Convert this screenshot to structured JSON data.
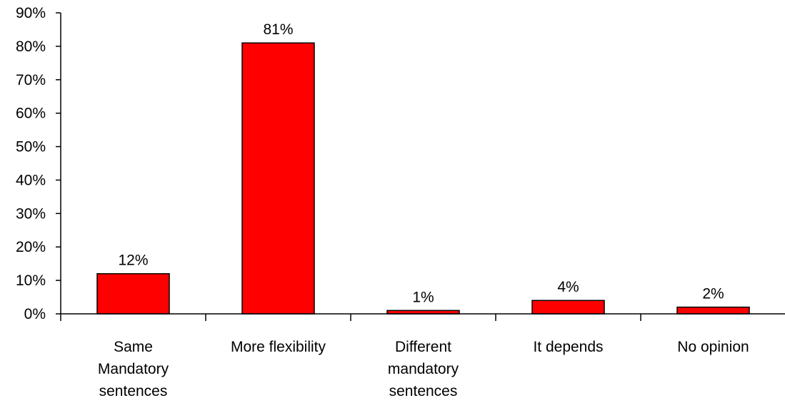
{
  "chart_data": {
    "type": "bar",
    "categories": [
      [
        "Same",
        "Mandatory",
        "sentences"
      ],
      [
        "More flexibility"
      ],
      [
        "Different",
        "mandatory",
        "sentences"
      ],
      [
        "It depends"
      ],
      [
        "No opinion"
      ]
    ],
    "values": [
      12,
      81,
      1,
      4,
      2
    ],
    "data_labels": [
      "12%",
      "81%",
      "1%",
      "4%",
      "2%"
    ],
    "ylim": [
      0,
      90
    ],
    "yticks": [
      0,
      10,
      20,
      30,
      40,
      50,
      60,
      70,
      80,
      90
    ],
    "ytick_labels": [
      "0%",
      "10%",
      "20%",
      "30%",
      "40%",
      "50%",
      "60%",
      "70%",
      "80%",
      "90%"
    ],
    "bar_color": "#ff0000",
    "bar_edge_color": "#000000",
    "grid": false,
    "legend": "none"
  }
}
